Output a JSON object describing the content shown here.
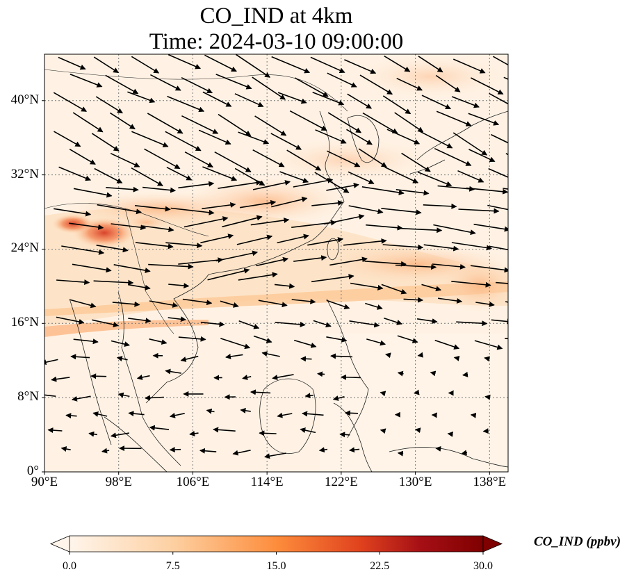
{
  "title": {
    "line1": "CO_IND at 4km",
    "line2": "Time: 2024-03-10 09:00:00"
  },
  "map": {
    "lon_range": [
      90,
      140
    ],
    "lat_range": [
      0,
      45
    ],
    "x_ticks": [
      "90°E",
      "98°E",
      "106°E",
      "114°E",
      "122°E",
      "130°E",
      "138°E"
    ],
    "x_tick_values": [
      90,
      98,
      106,
      114,
      122,
      130,
      138
    ],
    "y_ticks": [
      "40°N",
      "32°N",
      "24°N",
      "16°N",
      "8°N",
      "0°"
    ],
    "y_tick_values": [
      40,
      32,
      24,
      16,
      8,
      0
    ],
    "gridlines": true,
    "vectors": "wind-arrows"
  },
  "colorbar": {
    "label": "CO_IND (ppbv)",
    "ticks": [
      "0.0",
      "7.5",
      "15.0",
      "22.5",
      "30.0"
    ],
    "tick_values": [
      0,
      7.5,
      15,
      22.5,
      30
    ],
    "range": [
      0,
      30
    ],
    "colormap": [
      "#fff5eb",
      "#fdd0a2",
      "#fd8d3c",
      "#d94801",
      "#a50f15",
      "#7f0000"
    ],
    "extend": "both"
  }
}
